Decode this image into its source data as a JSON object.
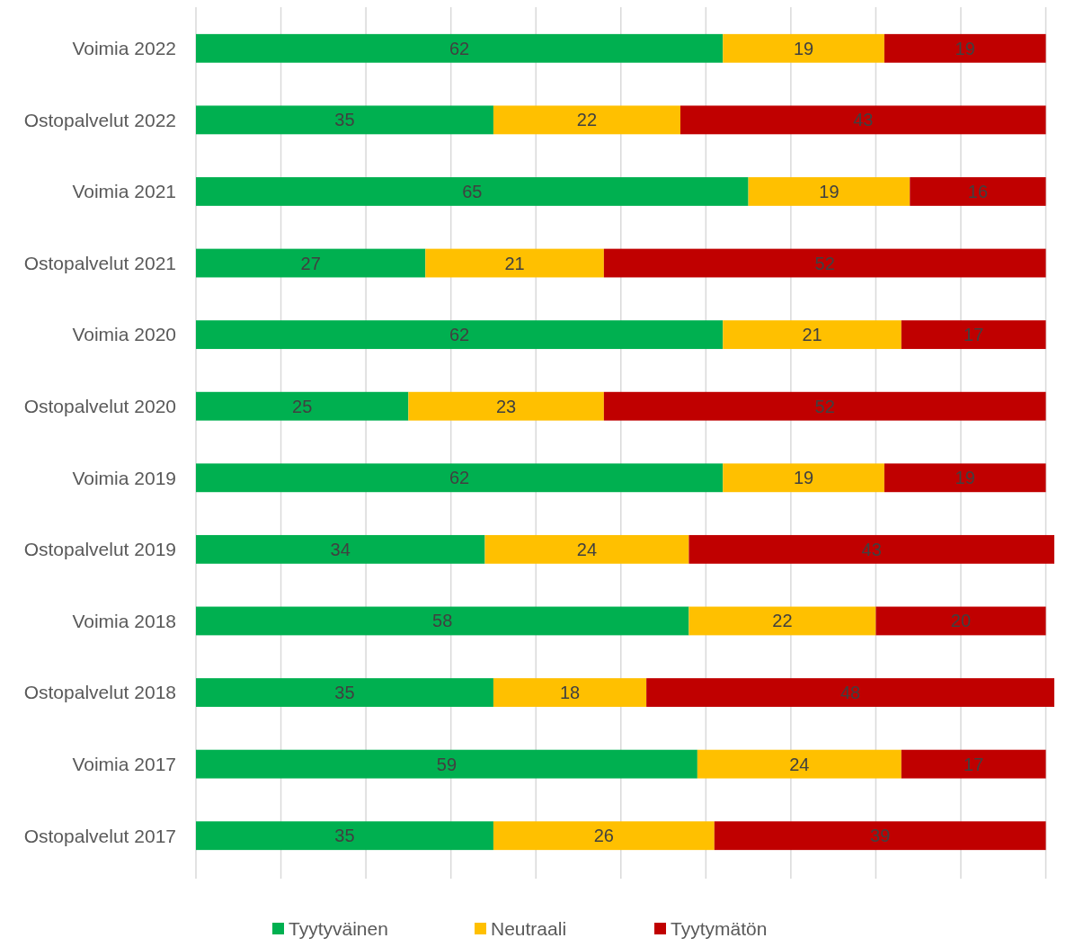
{
  "chart_data": {
    "type": "bar",
    "orientation": "horizontal",
    "stacked": true,
    "data_labels": true,
    "categories": [
      "Voimia 2022",
      "Ostopalvelut 2022",
      "Voimia 2021",
      "Ostopalvelut 2021",
      "Voimia 2020",
      "Ostopalvelut 2020",
      "Voimia 2019",
      "Ostopalvelut 2019",
      "Voimia 2018",
      "Ostopalvelut 2018",
      "Voimia 2017",
      "Ostopalvelut 2017"
    ],
    "series": [
      {
        "name": "Tyytyväinen",
        "color": "#00b050",
        "values": [
          62,
          35,
          65,
          27,
          62,
          25,
          62,
          34,
          58,
          35,
          59,
          35
        ]
      },
      {
        "name": "Neutraali",
        "color": "#ffc000",
        "values": [
          19,
          22,
          19,
          21,
          21,
          23,
          19,
          24,
          22,
          18,
          24,
          26
        ]
      },
      {
        "name": "Tyytymätön",
        "color": "#c00000",
        "values": [
          19,
          43,
          16,
          52,
          17,
          52,
          19,
          43,
          20,
          48,
          17,
          39
        ]
      }
    ],
    "xlim": [
      0,
      101
    ],
    "xticks": [
      {
        "value": 0,
        "label": null
      },
      {
        "value": 10,
        "label": null
      },
      {
        "value": 20,
        "label": null
      },
      {
        "value": 30,
        "label": null
      },
      {
        "value": 40,
        "label": null
      },
      {
        "value": 50,
        "label": null
      },
      {
        "value": 60,
        "label": null
      },
      {
        "value": 70,
        "label": null
      },
      {
        "value": 80,
        "label": null
      },
      {
        "value": 90,
        "label": null
      },
      {
        "value": 100,
        "label": null
      }
    ],
    "tick_labels": "y",
    "grid": "x",
    "legend": "bottom"
  }
}
